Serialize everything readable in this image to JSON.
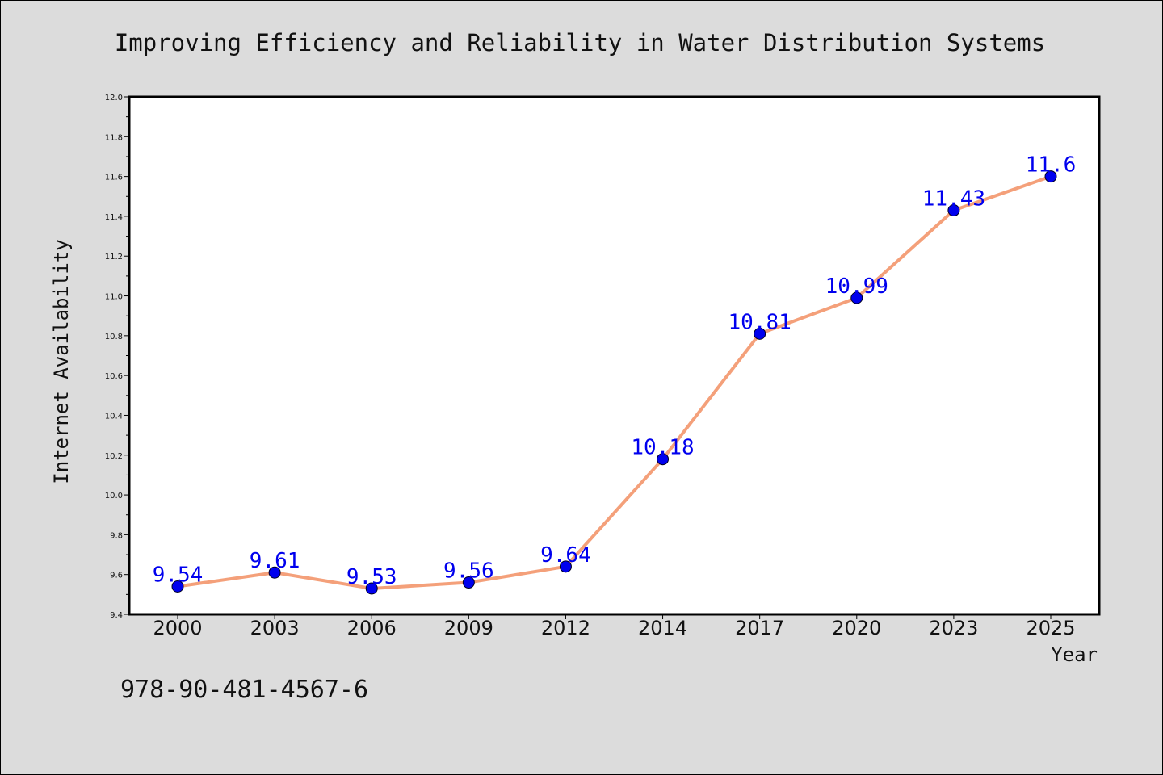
{
  "chart_data": {
    "type": "line",
    "title": "Improving Efficiency and Reliability in Water Distribution Systems",
    "xlabel": "Year",
    "ylabel": "Internet Availability",
    "categories": [
      "2000",
      "2003",
      "2006",
      "2009",
      "2012",
      "2014",
      "2017",
      "2020",
      "2023",
      "2025"
    ],
    "series": [
      {
        "values": [
          9.54,
          9.61,
          9.53,
          9.56,
          9.64,
          10.18,
          10.81,
          10.99,
          11.43,
          11.6
        ],
        "data_labels": [
          "9.54",
          "9.61",
          "9.53",
          "9.56",
          "9.64",
          "10.18",
          "10.81",
          "10.99",
          "11.43",
          "11.6"
        ],
        "line_color": "#f4a07a",
        "marker_color": "#0000ee",
        "label_color": "#0000ee"
      }
    ],
    "ylim": [
      9.4,
      12.0
    ],
    "yticks": [
      "9.4",
      "9.6",
      "9.8",
      "10.0",
      "10.2",
      "10.4",
      "10.6",
      "10.8",
      "11.0",
      "11.2",
      "11.4",
      "11.6",
      "11.8",
      "12.0"
    ],
    "grid": false,
    "legend": "none"
  },
  "annotation": "978-90-481-4567-6",
  "colors": {
    "background": "#dcdcdc",
    "plot_background": "#ffffff",
    "axis": "#000000"
  }
}
